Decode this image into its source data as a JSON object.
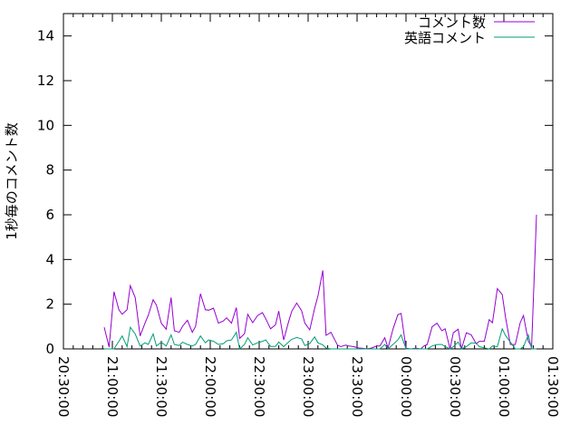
{
  "chart_data": {
    "type": "line",
    "title": "",
    "xlabel": "",
    "ylabel": "1秒毎のコメント数",
    "xlim": [
      "20:30:00",
      "01:30:00"
    ],
    "ylim": [
      0,
      15
    ],
    "grid": false,
    "legend_placement": "top-right",
    "x_tick_labels": [
      "20:30:00",
      "21:00:00",
      "21:30:00",
      "22:00:00",
      "22:30:00",
      "23:00:00",
      "23:30:00",
      "00:00:00",
      "00:30:00",
      "01:00:00",
      "01:30:00"
    ],
    "y_tick_labels": [
      "0",
      "2",
      "4",
      "6",
      "8",
      "10",
      "12",
      "14"
    ],
    "x": [
      "20:55",
      "20:58",
      "21:01",
      "21:04",
      "21:06",
      "21:09",
      "21:11",
      "21:14",
      "21:17",
      "21:20",
      "21:22",
      "21:25",
      "21:27",
      "21:30",
      "21:33",
      "21:36",
      "21:38",
      "21:41",
      "21:43",
      "21:46",
      "21:49",
      "21:51",
      "21:54",
      "21:57",
      "21:59",
      "22:02",
      "22:05",
      "22:08",
      "22:10",
      "22:13",
      "22:16",
      "22:18",
      "22:21",
      "22:23",
      "22:26",
      "22:29",
      "22:32",
      "22:34",
      "22:37",
      "22:40",
      "22:42",
      "22:45",
      "22:48",
      "22:50",
      "22:53",
      "22:56",
      "22:58",
      "23:01",
      "23:04",
      "23:06",
      "23:09",
      "23:11",
      "23:14",
      "23:18",
      "23:20",
      "23:23",
      "23:25",
      "23:28",
      "23:31",
      "23:33",
      "23:36",
      "23:39",
      "23:42",
      "23:44",
      "23:47",
      "23:49",
      "23:52",
      "23:55",
      "23:57",
      "00:00",
      "00:03",
      "00:06",
      "00:09",
      "00:11",
      "00:13",
      "00:16",
      "00:19",
      "00:22",
      "00:24",
      "00:27",
      "00:29",
      "00:32",
      "00:34",
      "00:37",
      "00:40",
      "00:43",
      "00:45",
      "00:48",
      "00:51",
      "00:53",
      "00:56",
      "00:59",
      "01:01",
      "01:04",
      "01:07",
      "01:10",
      "01:12",
      "01:15",
      "01:17",
      "01:20"
    ],
    "series": [
      {
        "name": "コメント数",
        "color": "#9400d3",
        "values": [
          0.97,
          0.08,
          2.56,
          1.75,
          1.55,
          1.75,
          2.83,
          2.3,
          0.58,
          1.15,
          1.5,
          2.2,
          1.96,
          1.15,
          0.88,
          2.3,
          0.81,
          0.74,
          1.01,
          1.28,
          0.74,
          1.01,
          2.47,
          1.75,
          1.73,
          1.82,
          1.15,
          1.25,
          1.39,
          1.15,
          1.85,
          0.47,
          0.68,
          1.55,
          1.17,
          1.49,
          1.62,
          1.35,
          0.9,
          1.08,
          1.69,
          0.4,
          1.21,
          1.69,
          2.05,
          1.71,
          1.15,
          0.85,
          1.82,
          2.36,
          3.51,
          0.61,
          0.74,
          0.17,
          0.1,
          0.17,
          0.13,
          0.1,
          0.04,
          0.03,
          0,
          0.04,
          0.13,
          0.13,
          0.5,
          0.04,
          0.88,
          1.53,
          1.59,
          0.03,
          0,
          0.03,
          0,
          0.13,
          0.2,
          0.99,
          1.15,
          0.81,
          0.9,
          0,
          0.72,
          0.88,
          0,
          0.72,
          0.63,
          0.23,
          0.34,
          0.34,
          1.31,
          1.17,
          2.7,
          2.43,
          1.42,
          0.2,
          0.2,
          1.17,
          1.49,
          0.34,
          0.1,
          6.0
        ]
      },
      {
        "name": "英語コメント",
        "color": "#009e73",
        "values": [
          0,
          0,
          0,
          0.34,
          0.58,
          0.1,
          0.97,
          0.67,
          0.13,
          0.27,
          0.2,
          0.67,
          0.13,
          0.3,
          0.13,
          0.63,
          0.2,
          0.15,
          0.3,
          0.2,
          0.13,
          0.2,
          0.58,
          0.27,
          0.4,
          0.34,
          0.2,
          0.23,
          0.36,
          0.4,
          0.74,
          0,
          0.2,
          0.5,
          0.18,
          0.27,
          0.34,
          0.4,
          0.11,
          0.11,
          0.31,
          0.1,
          0.31,
          0.43,
          0.51,
          0.45,
          0.15,
          0.24,
          0.54,
          0.27,
          0.18,
          0.04,
          0,
          0,
          0,
          0,
          0,
          0,
          0,
          0,
          0,
          0,
          0,
          0,
          0.2,
          0,
          0.2,
          0.4,
          0.63,
          0,
          0,
          0,
          0,
          0,
          0,
          0.13,
          0.2,
          0.2,
          0.1,
          0,
          0.1,
          0.31,
          0,
          0.1,
          0.27,
          0.25,
          0.1,
          0.05,
          0,
          0.13,
          0.1,
          0.9,
          0.6,
          0.3,
          0,
          0,
          0.1,
          0.63,
          0,
          0
        ]
      }
    ]
  }
}
